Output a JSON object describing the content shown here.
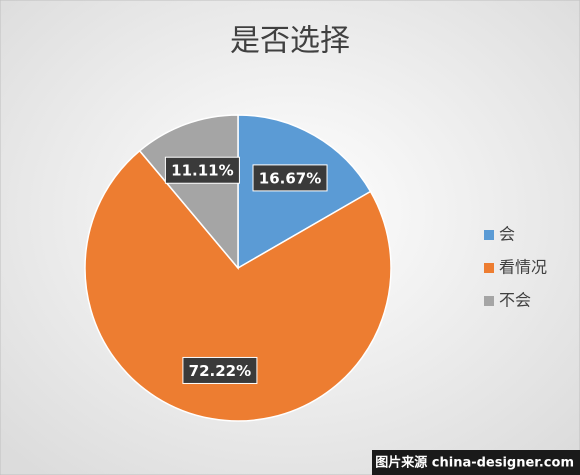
{
  "chart_data": {
    "type": "pie",
    "title": "是否选择",
    "categories": [
      "会",
      "看情况",
      "不会"
    ],
    "values": [
      16.67,
      72.22,
      11.11
    ],
    "value_labels": [
      "16.67%",
      "72.22%",
      "11.11%"
    ],
    "colors": [
      "#5b9bd5",
      "#ed7d31",
      "#a5a5a5"
    ],
    "legend": "right"
  },
  "watermark": "图片来源 china-designer.com"
}
